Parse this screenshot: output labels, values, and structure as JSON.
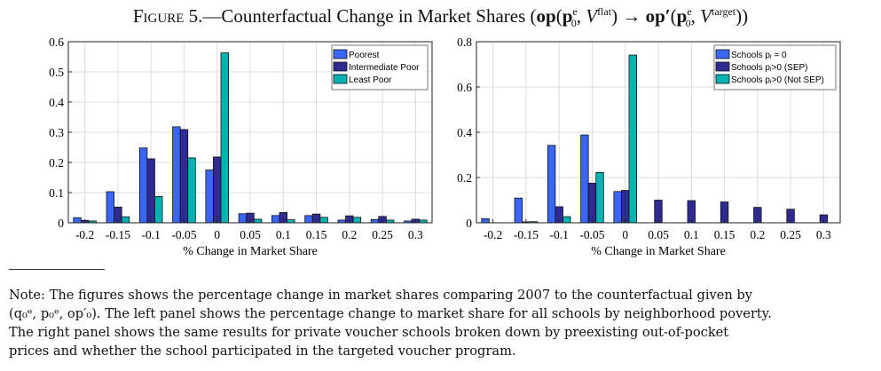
{
  "title": {
    "figure_label": "Figure 5.",
    "caption": "—Counterfactual Change in Market Shares",
    "math_open": "(",
    "op": "op",
    "p": "p",
    "sub0": "0",
    "supe": "e",
    "V": "V",
    "sup_flat": "flat",
    "arrow": "→",
    "op_prime": "op′",
    "sup_target": "target",
    "math_close": "))"
  },
  "note": {
    "lines": [
      "Note: The figures shows the percentage change in market shares comparing 2007 to the counterfactual given by",
      "(q₀ᵉ, p₀ᵉ, op′₀). The left panel shows the percentage change to market share for all schools by neighborhood poverty.",
      "The right panel shows the same results for private voucher schools broken down by preexisting out-of-pocket",
      "prices and whether the school participated in the targeted voucher program."
    ]
  },
  "colors": {
    "s1": "#3a66f5",
    "s2": "#2f2b92",
    "s3": "#00b2b0",
    "grid": "#dcdcdc"
  },
  "chart_data": [
    {
      "type": "bar",
      "title": "",
      "xlabel": "% Change in Market Share",
      "ylabel": "",
      "ylim": [
        0,
        0.6
      ],
      "yticks": [
        "0",
        "0.1",
        "0.2",
        "0.3",
        "0.4",
        "0.5",
        "0.6"
      ],
      "grid": true,
      "legend": "top-right",
      "categories": [
        "-0.2",
        "-0.15",
        "-0.1",
        "-0.05",
        "0",
        "0.05",
        "0.1",
        "0.15",
        "0.2",
        "0.25",
        "0.3"
      ],
      "series": [
        {
          "name": "Poorest",
          "values": [
            0.017,
            0.103,
            0.248,
            0.318,
            0.175,
            0.03,
            0.024,
            0.024,
            0.009,
            0.011,
            0.006
          ]
        },
        {
          "name": "Intermediate Poor",
          "values": [
            0.008,
            0.052,
            0.212,
            0.309,
            0.218,
            0.032,
            0.034,
            0.029,
            0.023,
            0.021,
            0.012
          ]
        },
        {
          "name": "Least Poor",
          "values": [
            0.006,
            0.02,
            0.087,
            0.215,
            0.563,
            0.012,
            0.01,
            0.018,
            0.018,
            0.009,
            0.009
          ]
        }
      ]
    },
    {
      "type": "bar",
      "title": "",
      "xlabel": "% Change in Market Share",
      "ylabel": "",
      "ylim": [
        0,
        0.8
      ],
      "yticks": [
        "0",
        "0.2",
        "0.4",
        "0.6",
        "0.8"
      ],
      "grid": true,
      "legend": "top-right",
      "categories": [
        "-0.2",
        "-0.15",
        "-0.1",
        "-0.05",
        "0",
        "0.05",
        "0.1",
        "0.15",
        "0.2",
        "0.25",
        "0.3"
      ],
      "series": [
        {
          "name": "Schools p_j = 0",
          "values": [
            0.018,
            0.109,
            0.342,
            0.388,
            0.138,
            0,
            0,
            0,
            0,
            0,
            0
          ]
        },
        {
          "name": "Schools p_j>0 (SEP)",
          "values": [
            0,
            0.004,
            0.071,
            0.175,
            0.143,
            0.1,
            0.098,
            0.092,
            0.068,
            0.06,
            0.035
          ]
        },
        {
          "name": "Schools p_j>0 (Not SEP)",
          "values": [
            0,
            0.005,
            0.027,
            0.222,
            0.741,
            0,
            0,
            0,
            0,
            0,
            0
          ]
        }
      ]
    }
  ]
}
